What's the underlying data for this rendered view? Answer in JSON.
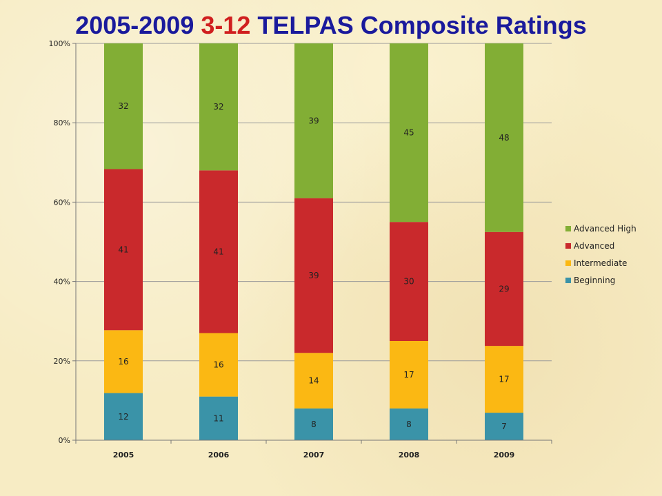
{
  "slide": {
    "title_parts": [
      {
        "text": "2005-2009 ",
        "color": "#1a1a9c"
      },
      {
        "text": "3-12",
        "color": "#d01f1f"
      },
      {
        "text": " TELPAS Composite Ratings",
        "color": "#1a1a9c"
      }
    ]
  },
  "chart_data": {
    "type": "bar",
    "stacked": "percent",
    "categories": [
      "2005",
      "2006",
      "2007",
      "2008",
      "2009"
    ],
    "series": [
      {
        "name": "Beginning",
        "color": "#3a93a8",
        "values": [
          12,
          11,
          8,
          8,
          7
        ]
      },
      {
        "name": "Intermediate",
        "color": "#fbb813",
        "values": [
          16,
          16,
          14,
          17,
          17
        ]
      },
      {
        "name": "Advanced",
        "color": "#c9292c",
        "values": [
          41,
          41,
          39,
          30,
          29
        ]
      },
      {
        "name": "Advanced High",
        "color": "#82ae35",
        "values": [
          32,
          32,
          39,
          45,
          48
        ]
      }
    ],
    "ylim": [
      0,
      100
    ],
    "yticks": [
      "0%",
      "20%",
      "40%",
      "60%",
      "80%",
      "100%"
    ],
    "grid": true,
    "legend_position": "right",
    "legend_order": [
      "Advanced High",
      "Advanced",
      "Intermediate",
      "Beginning"
    ]
  }
}
